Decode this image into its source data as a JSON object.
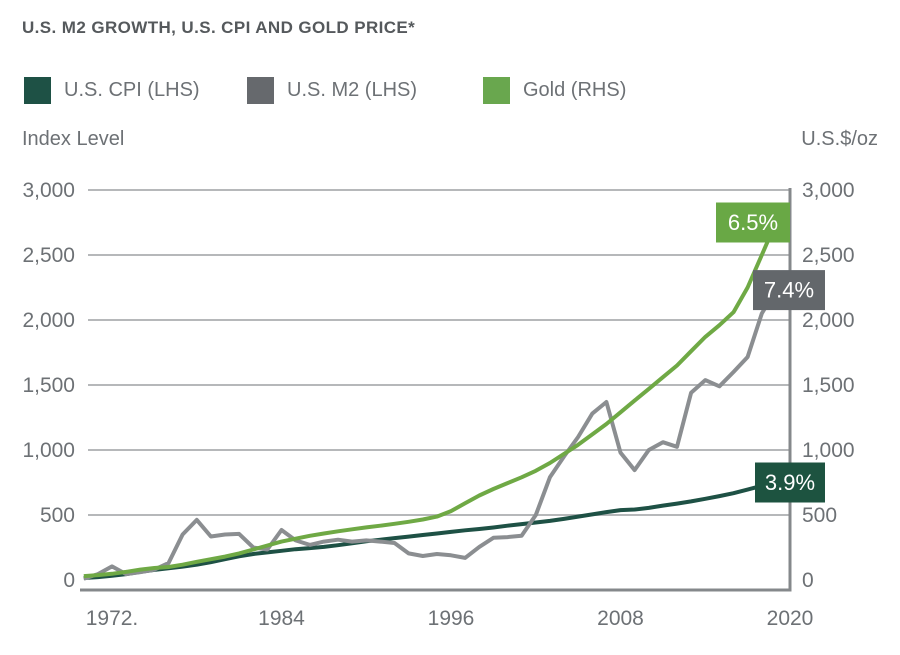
{
  "title": "U.S. M2 GROWTH, U.S. CPI AND GOLD PRICE*",
  "legend": [
    {
      "label": "U.S. CPI (LHS)",
      "color": "#1e5145"
    },
    {
      "label": "U.S. M2 (LHS)",
      "color": "#66696d"
    },
    {
      "label": "Gold (RHS)",
      "color": "#69a74e"
    }
  ],
  "axis_titles": {
    "left": "Index Level",
    "right": "U.S.$/oz"
  },
  "chart_data": {
    "type": "line",
    "title": "U.S. M2 GROWTH, U.S. CPI AND GOLD PRICE*",
    "x_years": [
      1970,
      1971,
      1972,
      1973,
      1974,
      1975,
      1976,
      1977,
      1978,
      1979,
      1980,
      1981,
      1982,
      1983,
      1984,
      1985,
      1986,
      1987,
      1988,
      1989,
      1990,
      1991,
      1992,
      1993,
      1994,
      1995,
      1996,
      1997,
      1998,
      1999,
      2000,
      2001,
      2002,
      2003,
      2004,
      2005,
      2006,
      2007,
      2008,
      2009,
      2010,
      2011,
      2012,
      2013,
      2014,
      2015,
      2016,
      2017,
      2018,
      2019
    ],
    "series": [
      {
        "key": "cpi",
        "name": "U.S. CPI (LHS)",
        "axis": "LHS",
        "color": "#1e5145",
        "end_label": "3.9%",
        "end_label_bg": "#1d5340",
        "values": [
          15,
          22,
          32,
          45,
          62,
          78,
          90,
          103,
          118,
          138,
          160,
          182,
          200,
          212,
          225,
          237,
          245,
          255,
          268,
          282,
          298,
          310,
          322,
          334,
          346,
          358,
          370,
          382,
          392,
          404,
          418,
          430,
          442,
          455,
          470,
          488,
          505,
          522,
          538,
          542,
          555,
          572,
          588,
          605,
          625,
          645,
          668,
          695,
          725,
          750
        ]
      },
      {
        "key": "m2",
        "name": "U.S. M2 (LHS)",
        "axis": "LHS",
        "color": "#8b8e91",
        "end_label": "7.4%",
        "end_label_bg": "#63676b",
        "values": [
          10,
          45,
          105,
          45,
          60,
          80,
          130,
          350,
          462,
          335,
          350,
          355,
          250,
          235,
          385,
          305,
          270,
          295,
          310,
          295,
          305,
          295,
          285,
          205,
          185,
          200,
          190,
          170,
          255,
          325,
          330,
          340,
          500,
          790,
          950,
          1100,
          1280,
          1369,
          980,
          845,
          1000,
          1060,
          1025,
          1440,
          1538,
          1490,
          1600,
          1715,
          2050,
          2230
        ]
      },
      {
        "key": "gold",
        "name": "Gold (RHS)",
        "axis": "RHS",
        "color": "#6fa945",
        "end_label": "6.5%",
        "end_label_bg": "#69a845",
        "values": [
          30,
          38,
          48,
          62,
          80,
          92,
          100,
          118,
          140,
          160,
          180,
          205,
          235,
          265,
          295,
          318,
          340,
          358,
          375,
          390,
          405,
          418,
          432,
          448,
          465,
          488,
          530,
          590,
          650,
          700,
          745,
          790,
          840,
          900,
          970,
          1040,
          1120,
          1200,
          1290,
          1380,
          1470,
          1560,
          1650,
          1760,
          1870,
          1960,
          2060,
          2250,
          2500,
          2750
        ]
      }
    ],
    "axis": {
      "y_tick_labels": [
        "3,000",
        "2,500",
        "2,000",
        "1,500",
        "1,000",
        "500",
        "0"
      ],
      "y_tick_values": [
        3000,
        2500,
        2000,
        1500,
        1000,
        500,
        0
      ],
      "x_tick_labels": [
        "1972.",
        "1984",
        "1996",
        "2008",
        "2020"
      ],
      "x_tick_years": [
        1972,
        1984,
        1996,
        2008,
        2020
      ],
      "ylim": [
        0,
        3000
      ],
      "left_axis_title": "Index Level",
      "right_axis_title": "U.S.$/oz",
      "grid": true,
      "legend_position": "top"
    }
  }
}
